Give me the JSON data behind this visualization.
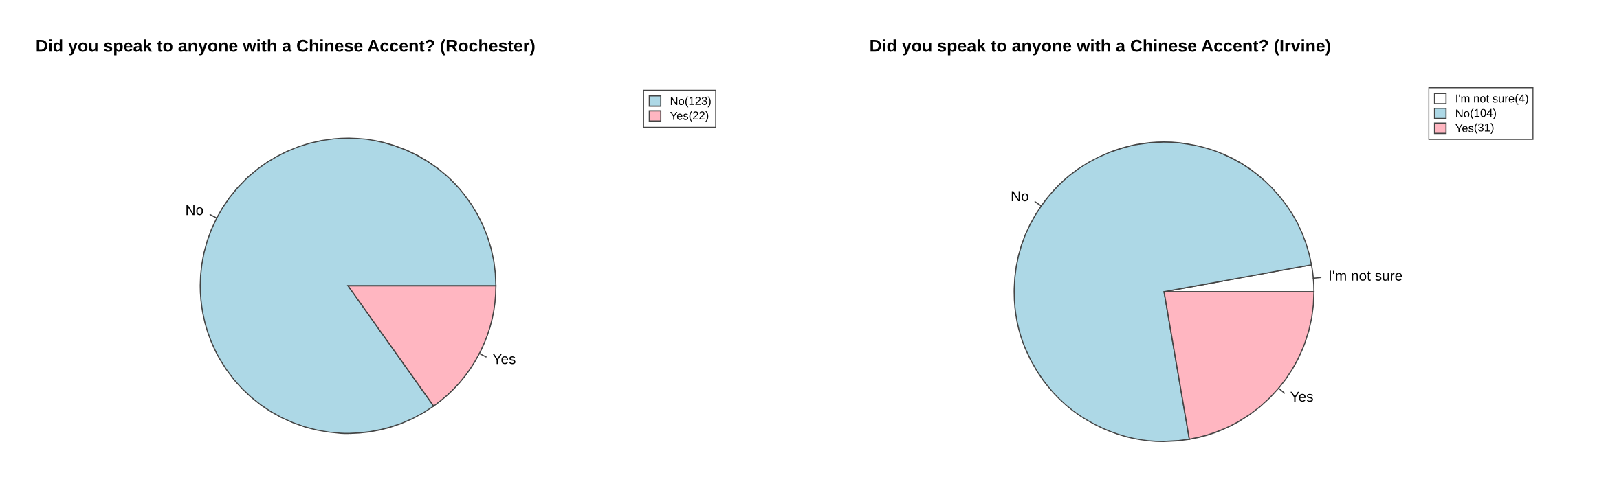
{
  "chart_data": [
    {
      "type": "pie",
      "title": "Did you speak to anyone with a Chinese Accent? (Rochester)",
      "categories": [
        "No",
        "Yes"
      ],
      "values": [
        123,
        22
      ],
      "value_labels": [
        "(123)",
        "(22)"
      ],
      "colors": [
        "#add8e6",
        "#ffb6c1"
      ],
      "legend": "top right"
    },
    {
      "type": "pie",
      "title": "Did you speak to anyone with a Chinese Accent? (Irvine)",
      "categories": [
        "I'm not sure",
        "No",
        "Yes"
      ],
      "values": [
        4,
        104,
        31
      ],
      "value_labels": [
        "(4)",
        "(104)",
        "(31)"
      ],
      "colors": [
        "#ffffff",
        "#add8e6",
        "#ffb6c1"
      ],
      "legend": "top right"
    }
  ]
}
